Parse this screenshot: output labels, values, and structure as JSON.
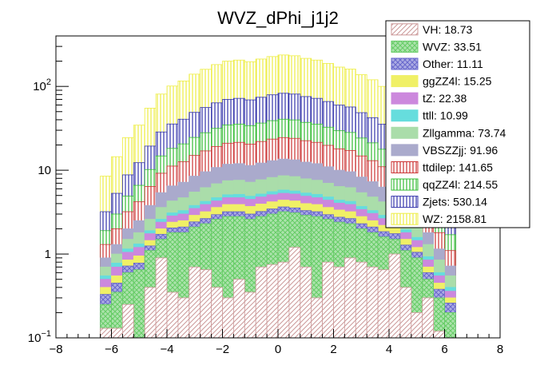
{
  "chart_data": {
    "type": "bar",
    "stacked": true,
    "title": "WVZ_dPhi_j1j2",
    "xlabel": "",
    "ylabel": "",
    "xlim": [
      -8,
      8
    ],
    "ylim": [
      0.1,
      400
    ],
    "yscale": "log",
    "bin_edges_range": [
      -6.4,
      6.4
    ],
    "n_bins": 32,
    "x_ticks": [
      "−8",
      "−6",
      "−4",
      "−2",
      "0",
      "2",
      "4",
      "6",
      "8"
    ],
    "x_tick_values": [
      -8,
      -6,
      -4,
      -2,
      0,
      2,
      4,
      6,
      8
    ],
    "y_ticks": [
      {
        "value": 0.1,
        "base": "10",
        "exp": "−1"
      },
      {
        "value": 1,
        "label": "1"
      },
      {
        "value": 10,
        "label": "10"
      },
      {
        "value": 100,
        "base": "10",
        "exp": "2"
      }
    ],
    "legend_position": "top-right",
    "series": [
      {
        "name": "VH",
        "legend": "VH: 18.73",
        "color": "#cc9999",
        "pattern": "diag",
        "cumulative": [
          0.13,
          0.13,
          0.25,
          0.07,
          0.4,
          0.9,
          0.35,
          0.3,
          0.7,
          0.65,
          0.4,
          0.3,
          0.5,
          0.35,
          0.7,
          0.75,
          0.8,
          1.2,
          0.7,
          0.3,
          0.8,
          0.7,
          0.9,
          0.8,
          0.7,
          0.65,
          1.0,
          0.4,
          0.2,
          0.3,
          0.12,
          0.09
        ]
      },
      {
        "name": "WVZ",
        "legend": "WVZ: 33.51",
        "color": "#66cc66",
        "pattern": "cross",
        "cumulative": [
          0.25,
          0.35,
          0.6,
          0.65,
          1.1,
          1.5,
          1.8,
          1.8,
          2.1,
          2.3,
          2.6,
          2.8,
          2.8,
          2.6,
          2.8,
          3.0,
          3.2,
          3.1,
          2.9,
          2.8,
          2.6,
          2.4,
          2.3,
          2.0,
          1.8,
          1.6,
          1.5,
          1.1,
          0.9,
          0.5,
          0.3,
          0.2
        ]
      },
      {
        "name": "Other",
        "legend": "Other: 11.11",
        "color": "#6666cc",
        "pattern": "cross",
        "cumulative": [
          0.33,
          0.45,
          0.72,
          0.78,
          1.25,
          1.72,
          2.05,
          2.1,
          2.42,
          2.65,
          2.95,
          3.2,
          3.2,
          3.0,
          3.22,
          3.45,
          3.65,
          3.55,
          3.3,
          3.2,
          2.95,
          2.75,
          2.65,
          2.3,
          2.1,
          1.85,
          1.75,
          1.28,
          1.05,
          0.6,
          0.38,
          0.26
        ]
      },
      {
        "name": "ggZZ4l",
        "legend": "ggZZ4l: 15.25",
        "color": "#f0f066",
        "pattern": "solid",
        "cumulative": [
          0.4,
          0.55,
          0.85,
          0.95,
          1.45,
          2.0,
          2.4,
          2.5,
          2.9,
          3.2,
          3.6,
          3.9,
          3.9,
          3.7,
          3.95,
          4.2,
          4.4,
          4.3,
          4.0,
          3.9,
          3.6,
          3.35,
          3.2,
          2.8,
          2.5,
          2.2,
          2.05,
          1.5,
          1.2,
          0.7,
          0.45,
          0.3
        ]
      },
      {
        "name": "tZ",
        "legend": "tZ: 22.38",
        "color": "#cc88dd",
        "pattern": "solid",
        "cumulative": [
          0.5,
          0.7,
          1.05,
          1.2,
          1.75,
          2.4,
          2.85,
          3.0,
          3.5,
          3.9,
          4.3,
          4.7,
          4.7,
          4.5,
          4.8,
          5.1,
          5.3,
          5.2,
          4.9,
          4.7,
          4.4,
          4.05,
          3.9,
          3.4,
          3.05,
          2.65,
          2.45,
          1.8,
          1.45,
          0.85,
          0.55,
          0.36
        ]
      },
      {
        "name": "ttll",
        "legend": "ttll: 10.99",
        "color": "#66dddd",
        "pattern": "solid",
        "cumulative": [
          0.55,
          0.78,
          1.15,
          1.32,
          1.9,
          2.6,
          3.1,
          3.3,
          3.8,
          4.25,
          4.7,
          5.1,
          5.15,
          4.9,
          5.2,
          5.55,
          5.8,
          5.65,
          5.35,
          5.15,
          4.8,
          4.4,
          4.25,
          3.7,
          3.3,
          2.9,
          2.65,
          1.95,
          1.58,
          0.93,
          0.6,
          0.4
        ]
      },
      {
        "name": "Zllgamma",
        "legend": "Zllgamma: 73.74",
        "color": "#aaddaa",
        "pattern": "solid",
        "cumulative": [
          0.7,
          1.0,
          1.5,
          1.8,
          2.6,
          3.6,
          4.3,
          4.7,
          5.5,
          6.2,
          6.9,
          7.5,
          7.6,
          7.2,
          7.7,
          8.2,
          8.6,
          8.4,
          7.9,
          7.6,
          7.0,
          6.4,
          6.2,
          5.4,
          4.8,
          4.2,
          3.8,
          2.8,
          2.25,
          1.3,
          0.85,
          0.55
        ]
      },
      {
        "name": "VBSZZjj",
        "legend": "VBSZZjj: 91.96",
        "color": "#aaaacc",
        "pattern": "solid",
        "cumulative": [
          0.9,
          1.3,
          2.0,
          2.5,
          3.8,
          5.4,
          6.5,
          7.2,
          8.5,
          9.6,
          10.8,
          11.8,
          12.0,
          11.4,
          12.2,
          13.0,
          13.6,
          13.3,
          12.5,
          12.0,
          11.0,
          10.0,
          9.6,
          8.3,
          7.3,
          6.3,
          5.6,
          4.0,
          3.2,
          1.8,
          1.15,
          0.72
        ]
      },
      {
        "name": "ttdilep",
        "legend": "ttdilep: 141.65",
        "color": "#cc3333",
        "pattern": "vline",
        "cumulative": [
          1.3,
          2.0,
          3.2,
          4.2,
          6.4,
          9.2,
          11.2,
          12.6,
          15.0,
          17.0,
          19.2,
          21.0,
          21.5,
          20.5,
          22.0,
          23.5,
          24.5,
          24.0,
          22.5,
          21.5,
          19.8,
          18.0,
          17.2,
          14.8,
          13.0,
          11.0,
          9.6,
          6.8,
          5.3,
          3.0,
          1.8,
          1.1
        ]
      },
      {
        "name": "qqZZ4l",
        "legend": "qqZZ4l: 214.55",
        "color": "#33bb33",
        "pattern": "vline",
        "cumulative": [
          1.9,
          3.0,
          4.9,
          6.6,
          10.2,
          14.8,
          18.2,
          20.6,
          24.6,
          28.0,
          31.6,
          34.6,
          35.5,
          34.0,
          36.5,
          39.0,
          40.6,
          39.8,
          37.2,
          35.5,
          32.6,
          29.6,
          28.2,
          24.2,
          21.2,
          17.8,
          15.4,
          10.8,
          8.4,
          4.7,
          2.8,
          1.7
        ]
      },
      {
        "name": "Zjets",
        "legend": "Zjets: 530.14",
        "color": "#3333aa",
        "pattern": "vline",
        "cumulative": [
          3.2,
          5.3,
          8.8,
          12.3,
          19.4,
          28.6,
          35.6,
          40.6,
          49.0,
          56.0,
          63.6,
          70.0,
          72.0,
          69.0,
          74.2,
          79.4,
          82.8,
          81.0,
          75.6,
          72.0,
          66.0,
          59.8,
          56.8,
          48.6,
          42.4,
          35.4,
          30.4,
          21.0,
          16.2,
          8.9,
          5.2,
          3.1
        ]
      },
      {
        "name": "WZ",
        "legend": "WZ: 2158.81",
        "color": "#eeee44",
        "pattern": "vline",
        "cumulative": [
          8.5,
          14.5,
          24.5,
          34.5,
          55.0,
          81.0,
          101.0,
          116.0,
          140.0,
          160.0,
          182.0,
          200.0,
          206.0,
          197.0,
          212.0,
          227.0,
          237.0,
          232.0,
          216.0,
          206.0,
          188.0,
          170.0,
          161.0,
          138.0,
          120.0,
          100.0,
          86.0,
          59.0,
          45.5,
          25.0,
          14.5,
          8.5
        ]
      }
    ]
  },
  "colors": {
    "background": "#ffffff",
    "frame": "#000000"
  }
}
